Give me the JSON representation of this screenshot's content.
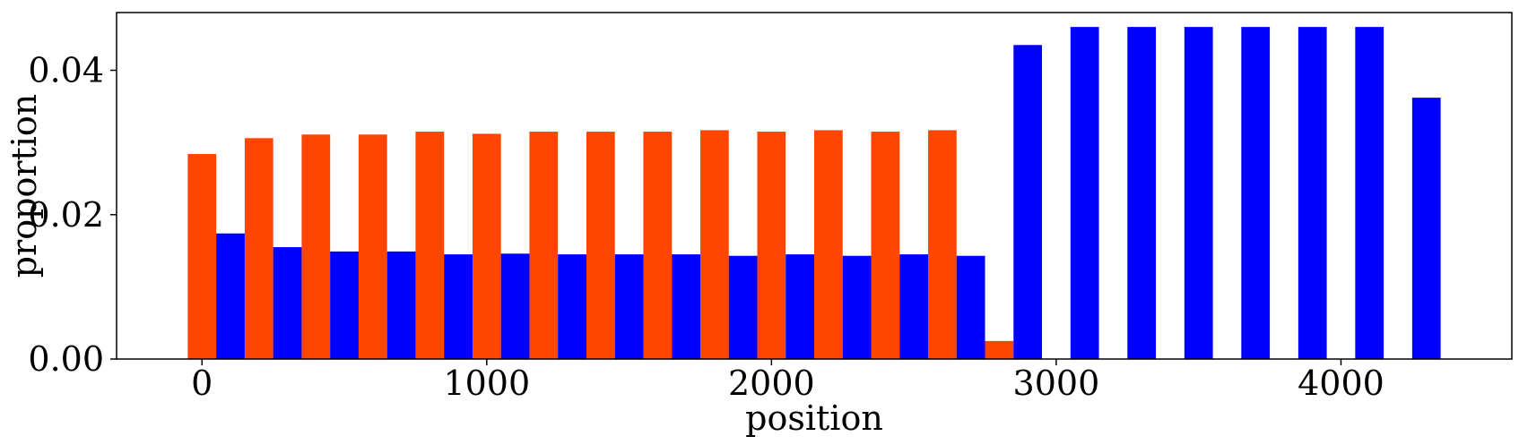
{
  "chart_data": {
    "type": "bar",
    "title": "",
    "xlabel": "position",
    "ylabel": "proportion",
    "xlim": [
      -300,
      4600
    ],
    "ylim": [
      0,
      0.048
    ],
    "x_ticks": [
      0,
      1000,
      2000,
      3000,
      4000
    ],
    "x_tick_labels": [
      "0",
      "1000",
      "2000",
      "3000",
      "4000"
    ],
    "y_ticks": [
      0.0,
      0.02,
      0.04
    ],
    "y_tick_labels": [
      "0.00",
      "0.02",
      "0.04"
    ],
    "grid": false,
    "bar_width": 100,
    "series": [
      {
        "color": "#ff4500",
        "x": [
          0,
          200,
          400,
          600,
          800,
          1000,
          1200,
          1400,
          1600,
          1800,
          2000,
          2200,
          2400,
          2600,
          2800
        ],
        "values": [
          0.0284,
          0.0306,
          0.0311,
          0.0311,
          0.0315,
          0.0312,
          0.0315,
          0.0315,
          0.0315,
          0.0317,
          0.0315,
          0.0317,
          0.0315,
          0.0317,
          0.0025
        ]
      },
      {
        "color": "#0000ff",
        "x": [
          100,
          300,
          500,
          700,
          900,
          1100,
          1300,
          1500,
          1700,
          1900,
          2100,
          2300,
          2500,
          2700,
          2900,
          3100,
          3300,
          3500,
          3700,
          3900,
          4100,
          4300
        ],
        "values": [
          0.0174,
          0.0155,
          0.0149,
          0.0149,
          0.0145,
          0.0146,
          0.0145,
          0.0145,
          0.0145,
          0.0143,
          0.0145,
          0.0143,
          0.0145,
          0.0143,
          0.0435,
          0.046,
          0.046,
          0.046,
          0.046,
          0.046,
          0.046,
          0.0362
        ]
      }
    ]
  }
}
